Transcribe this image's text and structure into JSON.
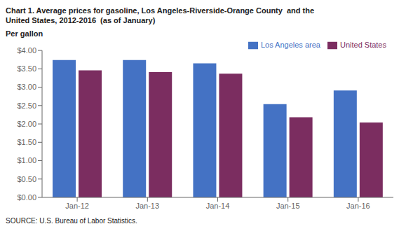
{
  "chart_data": {
    "type": "bar",
    "title": "Chart 1. Average prices for gasoline, Los Angeles-Riverside-Orange County  and the\nUnited States, 2012-2016  (as of January)",
    "ylabel": "Per gallon",
    "source": "SOURCE: U.S. Bureau of Labor Statistics.",
    "categories": [
      "Jan-12",
      "Jan-13",
      "Jan-14",
      "Jan-15",
      "Jan-16"
    ],
    "series": [
      {
        "name": "Los Angeles area",
        "color": "#4472C4",
        "values": [
          3.74,
          3.74,
          3.65,
          2.54,
          2.91
        ]
      },
      {
        "name": "United States",
        "color": "#7B2D60",
        "values": [
          3.46,
          3.41,
          3.37,
          2.18,
          2.04
        ]
      }
    ],
    "ylim": [
      0.0,
      4.0
    ],
    "yticks": [
      {
        "value": 0.0,
        "label": "$0.00"
      },
      {
        "value": 0.5,
        "label": "$0.50"
      },
      {
        "value": 1.0,
        "label": "$1.00"
      },
      {
        "value": 1.5,
        "label": "$1.50"
      },
      {
        "value": 2.0,
        "label": "$2.00"
      },
      {
        "value": 2.5,
        "label": "$2.50"
      },
      {
        "value": 3.0,
        "label": "$3.00"
      },
      {
        "value": 3.5,
        "label": "$3.50"
      },
      {
        "value": 4.0,
        "label": "$4.00"
      }
    ],
    "grid": false,
    "legend": "upper right"
  }
}
